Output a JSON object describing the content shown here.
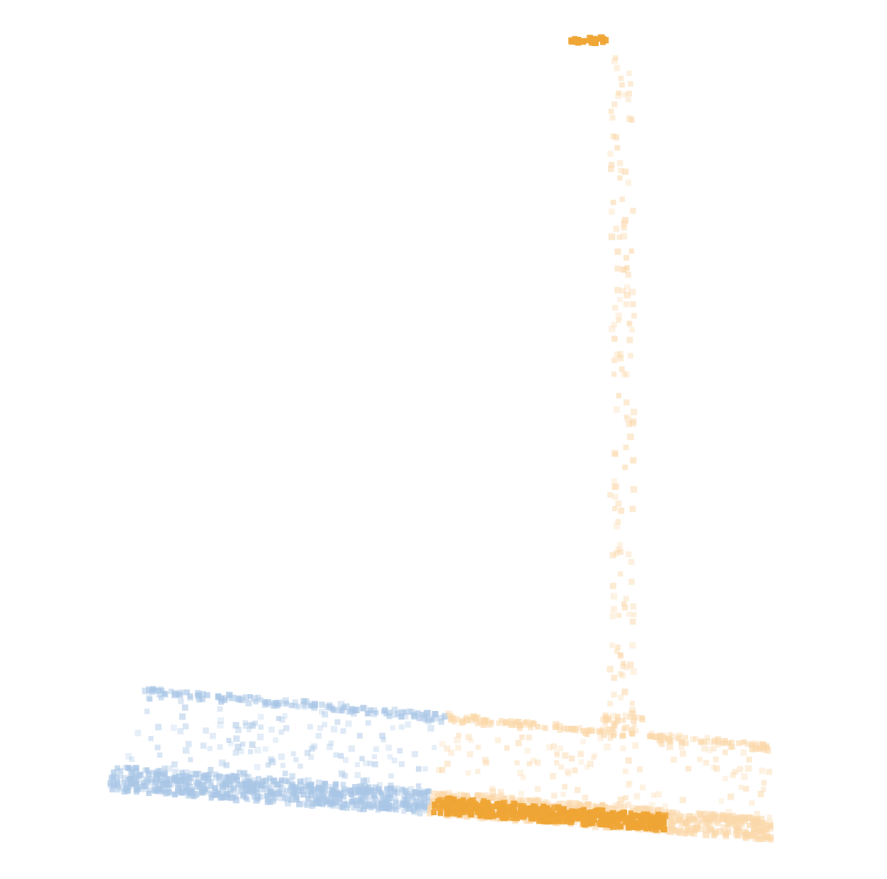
{
  "scene": {
    "background": "#ffffff",
    "groups": [
      {
        "name": "blue-cluster",
        "color": "#a9c6e6",
        "highlight_color": "#8fb5de"
      },
      {
        "name": "orange-cluster",
        "color": "#fbd8aa",
        "highlight_color": "#efa535"
      }
    ]
  }
}
